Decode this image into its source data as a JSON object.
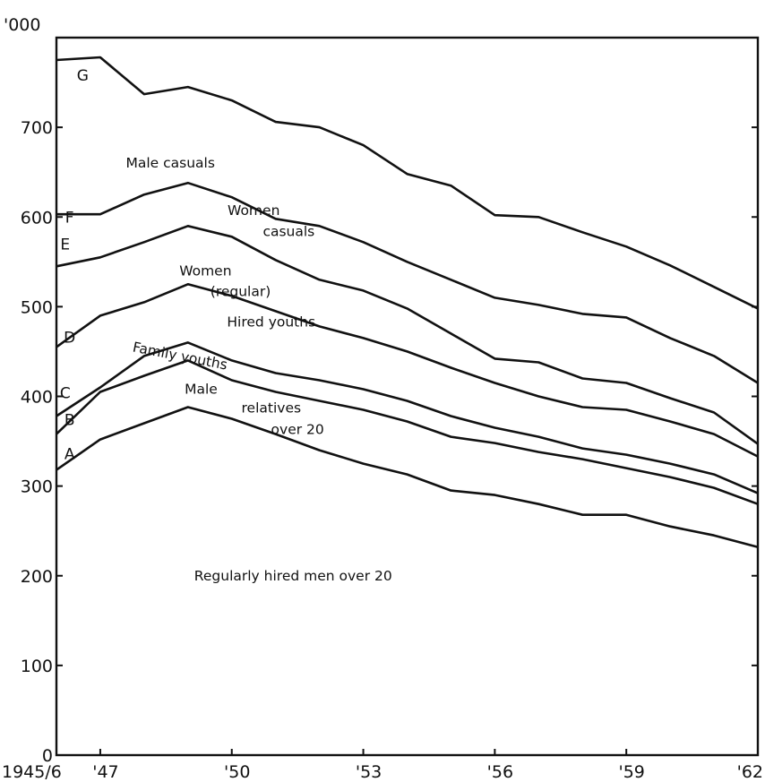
{
  "chart_data": {
    "type": "area",
    "unit_label": "'000",
    "ylim": [
      0,
      800
    ],
    "xlim": [
      1946,
      1962
    ],
    "y_ticks": [
      {
        "value": 0,
        "label": "0"
      },
      {
        "value": 100,
        "label": "100"
      },
      {
        "value": 200,
        "label": "200"
      },
      {
        "value": 300,
        "label": "300"
      },
      {
        "value": 400,
        "label": "400"
      },
      {
        "value": 500,
        "label": "500"
      },
      {
        "value": 600,
        "label": "600"
      },
      {
        "value": 700,
        "label": "700"
      }
    ],
    "x_ticks": [
      {
        "value": 1946,
        "label": "1945/6"
      },
      {
        "value": 1947,
        "label": "'47"
      },
      {
        "value": 1950,
        "label": "'50"
      },
      {
        "value": 1953,
        "label": "'53"
      },
      {
        "value": 1956,
        "label": "'56"
      },
      {
        "value": 1959,
        "label": "'59"
      },
      {
        "value": 1962,
        "label": "'62"
      }
    ],
    "x": [
      1946,
      1947,
      1948,
      1949,
      1950,
      1951,
      1952,
      1953,
      1954,
      1955,
      1956,
      1957,
      1958,
      1959,
      1960,
      1961,
      1962
    ],
    "series": [
      {
        "name": "A",
        "values": [
          318,
          352,
          370,
          388,
          375,
          358,
          340,
          325,
          313,
          295,
          290,
          280,
          268,
          268,
          255,
          245,
          232
        ]
      },
      {
        "name": "B",
        "values": [
          358,
          405,
          423,
          440,
          418,
          405,
          395,
          385,
          372,
          355,
          348,
          338,
          330,
          320,
          310,
          298,
          280
        ]
      },
      {
        "name": "C",
        "values": [
          378,
          410,
          445,
          460,
          440,
          426,
          418,
          408,
          395,
          378,
          365,
          355,
          342,
          335,
          325,
          313,
          292
        ]
      },
      {
        "name": "D",
        "values": [
          455,
          490,
          505,
          525,
          512,
          495,
          478,
          465,
          450,
          432,
          415,
          400,
          388,
          385,
          372,
          358,
          333
        ]
      },
      {
        "name": "E",
        "values": [
          545,
          555,
          572,
          590,
          578,
          552,
          530,
          518,
          498,
          470,
          442,
          438,
          420,
          415,
          398,
          382,
          347
        ]
      },
      {
        "name": "F",
        "values": [
          603,
          603,
          625,
          638,
          622,
          598,
          590,
          572,
          550,
          530,
          510,
          502,
          492,
          488,
          465,
          445,
          415
        ]
      },
      {
        "name": "G",
        "values": [
          775,
          778,
          737,
          745,
          730,
          706,
          700,
          680,
          648,
          635,
          602,
          600,
          583,
          567,
          546,
          522,
          498
        ]
      }
    ],
    "band_labels": [
      {
        "text": "Regularly hired men over 20",
        "x": 1951.4,
        "y": 195
      },
      {
        "text": "Male",
        "x": 1949.3,
        "y": 403
      },
      {
        "text": "relatives",
        "x": 1950.9,
        "y": 382
      },
      {
        "text": "over 20",
        "x": 1951.5,
        "y": 358
      },
      {
        "text": "Family youths",
        "x": 1948.8,
        "y": 440,
        "rotate": 11
      },
      {
        "text": "Hired youths",
        "x": 1950.9,
        "y": 478
      },
      {
        "text": "Women",
        "x": 1949.4,
        "y": 535
      },
      {
        "text": "(regular)",
        "x": 1950.2,
        "y": 512
      },
      {
        "text": "Women",
        "x": 1950.5,
        "y": 602
      },
      {
        "text": "casuals",
        "x": 1951.3,
        "y": 579
      },
      {
        "text": "Male casuals",
        "x": 1948.6,
        "y": 655
      }
    ],
    "line_letters": [
      {
        "text": "A",
        "x": 1946.3,
        "y": 330
      },
      {
        "text": "B",
        "x": 1946.3,
        "y": 368
      },
      {
        "text": "C",
        "x": 1946.2,
        "y": 398
      },
      {
        "text": "D",
        "x": 1946.3,
        "y": 460
      },
      {
        "text": "E",
        "x": 1946.2,
        "y": 564
      },
      {
        "text": "F",
        "x": 1946.3,
        "y": 594
      },
      {
        "text": "G",
        "x": 1946.6,
        "y": 752
      }
    ]
  }
}
